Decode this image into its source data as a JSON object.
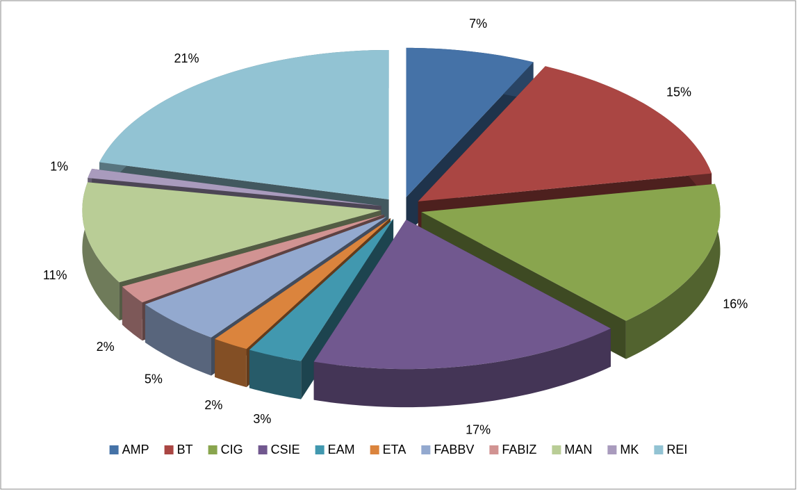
{
  "chart_data": {
    "type": "pie3d",
    "categories": [
      "AMP",
      "BT",
      "CIG",
      "CSIE",
      "EAM",
      "ETA",
      "FABBV",
      "FABIZ",
      "MAN",
      "MK",
      "REI"
    ],
    "values": [
      7,
      15,
      16,
      17,
      3,
      2,
      5,
      2,
      11,
      1,
      21
    ],
    "value_labels": [
      "7%",
      "15%",
      "16%",
      "17%",
      "3%",
      "2%",
      "5%",
      "2%",
      "11%",
      "1%",
      "21%"
    ],
    "colors": [
      "#4572a7",
      "#aa4643",
      "#89a54e",
      "#71588f",
      "#4198af",
      "#db843d",
      "#93a9cf",
      "#d19392",
      "#b9cd96",
      "#a99bbd",
      "#92c3d3"
    ],
    "legend": "bottom"
  }
}
